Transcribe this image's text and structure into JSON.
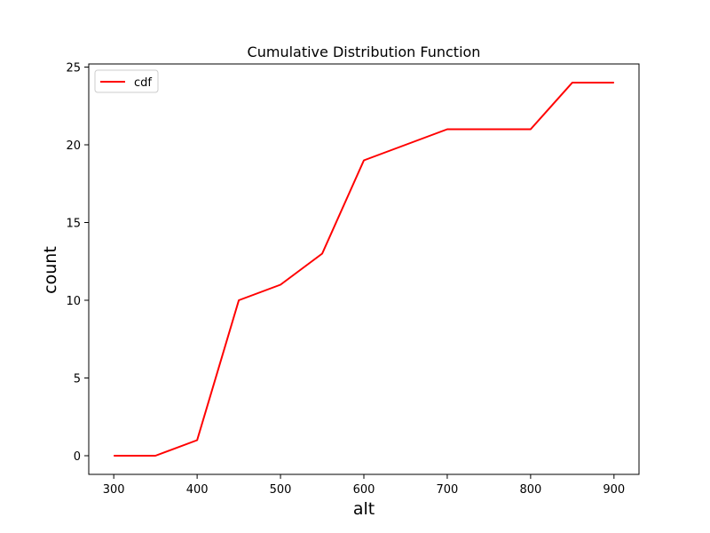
{
  "chart_data": {
    "type": "line",
    "title": "Cumulative Distribution Function",
    "xlabel": "alt",
    "ylabel": "count",
    "xlim": [
      270,
      930
    ],
    "ylim": [
      -1.2,
      25.2
    ],
    "xticks": [
      300,
      400,
      500,
      600,
      700,
      800,
      900
    ],
    "yticks": [
      0,
      5,
      10,
      15,
      20,
      25
    ],
    "grid": false,
    "legend_position": "top-left",
    "series": [
      {
        "name": "cdf",
        "color": "#ff0000",
        "x": [
          300,
          350,
          400,
          450,
          500,
          550,
          600,
          700,
          800,
          850,
          900
        ],
        "y": [
          0,
          0,
          1,
          10,
          11,
          13,
          19,
          21,
          21,
          24,
          24
        ]
      }
    ]
  }
}
